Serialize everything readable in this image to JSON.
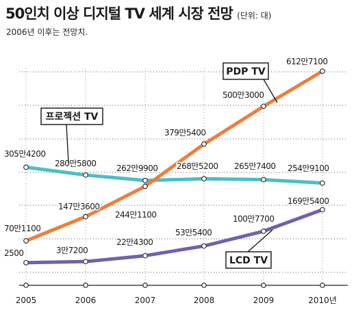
{
  "header": {
    "title": "50인치 이상 디지털 TV 세계 시장 전망",
    "unit": "(단위: 대)",
    "note": "2006년 이후는 전망치."
  },
  "chart_data": {
    "type": "line",
    "x": [
      "2005",
      "2006",
      "2007",
      "2008",
      "2009",
      "2010년"
    ],
    "ylim": [
      0,
      6500000
    ],
    "grid": true,
    "series": [
      {
        "name": "PDP TV",
        "color": "#f07d3a",
        "values": [
          701100,
          1473600,
          2441100,
          3795400,
          5003000,
          6127100
        ],
        "labels": [
          "70만1100",
          "147만3600",
          "244만1100",
          "379만5400",
          "500만3000",
          "612만7100"
        ]
      },
      {
        "name": "프로젝션 TV",
        "color": "#4bbfc8",
        "values": [
          3054200,
          2805800,
          2629900,
          2685200,
          2657400,
          2549100
        ],
        "labels": [
          "305만4200",
          "280만5800",
          "262만9900",
          "268만5200",
          "265만7400",
          "254만9100"
        ]
      },
      {
        "name": "LCD TV",
        "color": "#7161ab",
        "values": [
          2500,
          37200,
          224300,
          535400,
          1007700,
          1695400
        ],
        "labels": [
          "2500",
          "3만7200",
          "22만4300",
          "53만5400",
          "100만7700",
          "169만5400"
        ]
      }
    ]
  }
}
